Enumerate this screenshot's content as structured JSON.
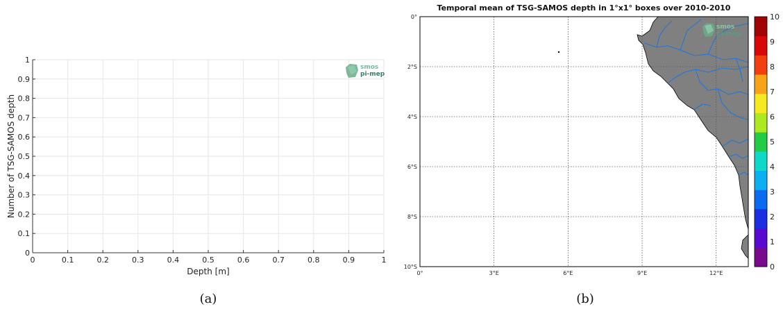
{
  "chart_data": [
    {
      "type": "bar",
      "panel": "(a)",
      "title": "",
      "xlabel": "Depth [m]",
      "ylabel": "Number of TSG-SAMOS depth",
      "xlim": [
        0,
        1
      ],
      "ylim": [
        0,
        1
      ],
      "xticks": [
        "0",
        "0.1",
        "0.2",
        "0.3",
        "0.4",
        "0.5",
        "0.6",
        "0.7",
        "0.8",
        "0.9",
        "1"
      ],
      "yticks": [
        "0",
        "0.1",
        "0.2",
        "0.3",
        "0.4",
        "0.5",
        "0.6",
        "0.7",
        "0.8",
        "0.9",
        "1"
      ],
      "grid": true,
      "series": [],
      "logo": {
        "line1": "smos",
        "line2": "pi-mep"
      }
    },
    {
      "type": "heatmap",
      "panel": "(b)",
      "title": "Temporal mean of TSG-SAMOS depth in 1°x1° boxes over 2010-2010",
      "xticks": [
        "0°",
        "3°E",
        "6°E",
        "9°E",
        "12°E"
      ],
      "yticks": [
        "0°",
        "2°S",
        "4°S",
        "6°S",
        "8°S",
        "10°S"
      ],
      "xlim": [
        0,
        13.3
      ],
      "ylim": [
        -10,
        0
      ],
      "grid": true,
      "colorbar": {
        "ticks": [
          "0",
          "1",
          "2",
          "3",
          "4",
          "5",
          "6",
          "7",
          "8",
          "9",
          "10"
        ],
        "range": [
          0,
          10
        ],
        "colors": [
          "#7a0a8c",
          "#5a0ad0",
          "#1a2ee0",
          "#0a6af0",
          "#0ab0f0",
          "#10d8c8",
          "#22cc44",
          "#aee820",
          "#f4e820",
          "#f7a418",
          "#f04010",
          "#d80808",
          "#a00404"
        ]
      },
      "land_color": "#808080",
      "river_color": "#1e78d8",
      "values": [],
      "logo": {
        "line1": "smos",
        "line2": "pi-mep"
      }
    }
  ],
  "captions": {
    "a": "(a)",
    "b": "(b)"
  }
}
